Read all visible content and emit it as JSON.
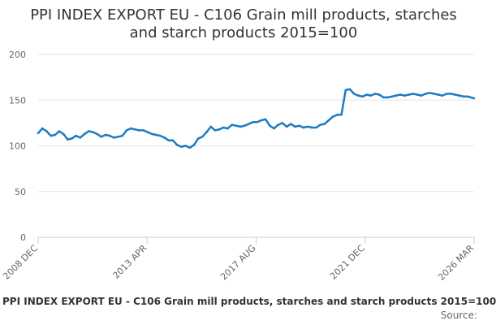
{
  "title_line1": "PPI INDEX EXPORT EU - C106 Grain mill products, starches",
  "title_line2": "and starch products 2015=100",
  "caption": "PPI INDEX EXPORT EU - C106 Grain mill products, starches and starch products 2015=100",
  "source_label": "Source:",
  "chart_data": {
    "type": "line",
    "title": "PPI INDEX EXPORT EU - C106 Grain mill products, starches and starch products 2015=100",
    "xlabel": "",
    "ylabel": "",
    "ylim": [
      0,
      200
    ],
    "yticks": [
      0,
      50,
      100,
      150,
      200
    ],
    "xlim": [
      "2008-12",
      "2026-03"
    ],
    "xtick_labels": [
      "2008 DEC",
      "2013 APR",
      "2017 AUG",
      "2021 DEC",
      "2026 MAR"
    ],
    "grid": true,
    "series_color": "#1f7bc0",
    "series": [
      {
        "x": [
          "2008-12",
          "2009-02",
          "2009-04",
          "2009-06",
          "2009-08",
          "2009-10",
          "2009-12",
          "2010-02",
          "2010-04",
          "2010-06",
          "2010-08",
          "2010-10",
          "2010-12",
          "2011-02",
          "2011-04",
          "2011-06",
          "2011-08",
          "2011-10",
          "2011-12",
          "2012-02",
          "2012-04",
          "2012-06",
          "2012-08",
          "2012-10",
          "2012-12",
          "2013-02",
          "2013-04",
          "2013-06",
          "2013-08",
          "2013-10",
          "2013-12",
          "2014-02",
          "2014-04",
          "2014-06",
          "2014-08",
          "2014-10",
          "2014-12",
          "2015-02",
          "2015-04",
          "2015-06",
          "2015-08",
          "2015-10",
          "2015-12",
          "2016-02",
          "2016-04",
          "2016-06",
          "2016-08",
          "2016-10",
          "2016-12",
          "2017-02",
          "2017-04",
          "2017-06",
          "2017-08",
          "2017-10",
          "2017-12",
          "2018-02",
          "2018-04",
          "2018-06",
          "2018-08",
          "2018-10",
          "2018-12",
          "2019-02",
          "2019-04",
          "2019-06",
          "2019-08",
          "2019-10",
          "2019-12",
          "2020-02",
          "2020-04",
          "2020-06",
          "2020-08",
          "2020-10",
          "2020-12",
          "2021-02",
          "2021-04",
          "2021-06",
          "2021-08",
          "2021-10",
          "2021-12",
          "2022-02",
          "2022-04",
          "2022-06",
          "2022-08",
          "2022-10",
          "2022-12",
          "2023-02",
          "2023-04",
          "2023-06",
          "2023-08",
          "2023-10",
          "2023-12",
          "2024-02",
          "2024-04",
          "2024-06",
          "2024-08",
          "2024-10",
          "2024-12",
          "2025-02",
          "2025-04",
          "2025-06",
          "2025-08",
          "2025-10",
          "2025-12",
          "2026-03"
        ],
        "values": [
          114,
          119,
          116,
          111,
          112,
          116,
          113,
          107,
          108,
          111,
          109,
          113,
          116,
          115,
          113,
          110,
          112,
          111,
          109,
          110,
          111,
          117,
          119,
          118,
          117,
          117,
          115,
          113,
          112,
          111,
          109,
          106,
          106,
          101,
          99,
          100,
          98,
          101,
          108,
          110,
          115,
          121,
          117,
          118,
          120,
          119,
          123,
          122,
          121,
          122,
          124,
          126,
          126,
          128,
          129,
          122,
          119,
          123,
          125,
          121,
          124,
          121,
          122,
          120,
          121,
          120,
          120,
          123,
          124,
          128,
          132,
          134,
          134,
          161,
          162,
          157,
          155,
          154,
          156,
          155,
          157,
          156,
          153,
          153,
          154,
          155,
          156,
          155,
          156,
          157,
          156,
          155,
          157,
          158,
          157,
          156,
          155,
          157,
          157,
          156,
          155,
          154,
          154,
          152
        ]
      }
    ]
  }
}
